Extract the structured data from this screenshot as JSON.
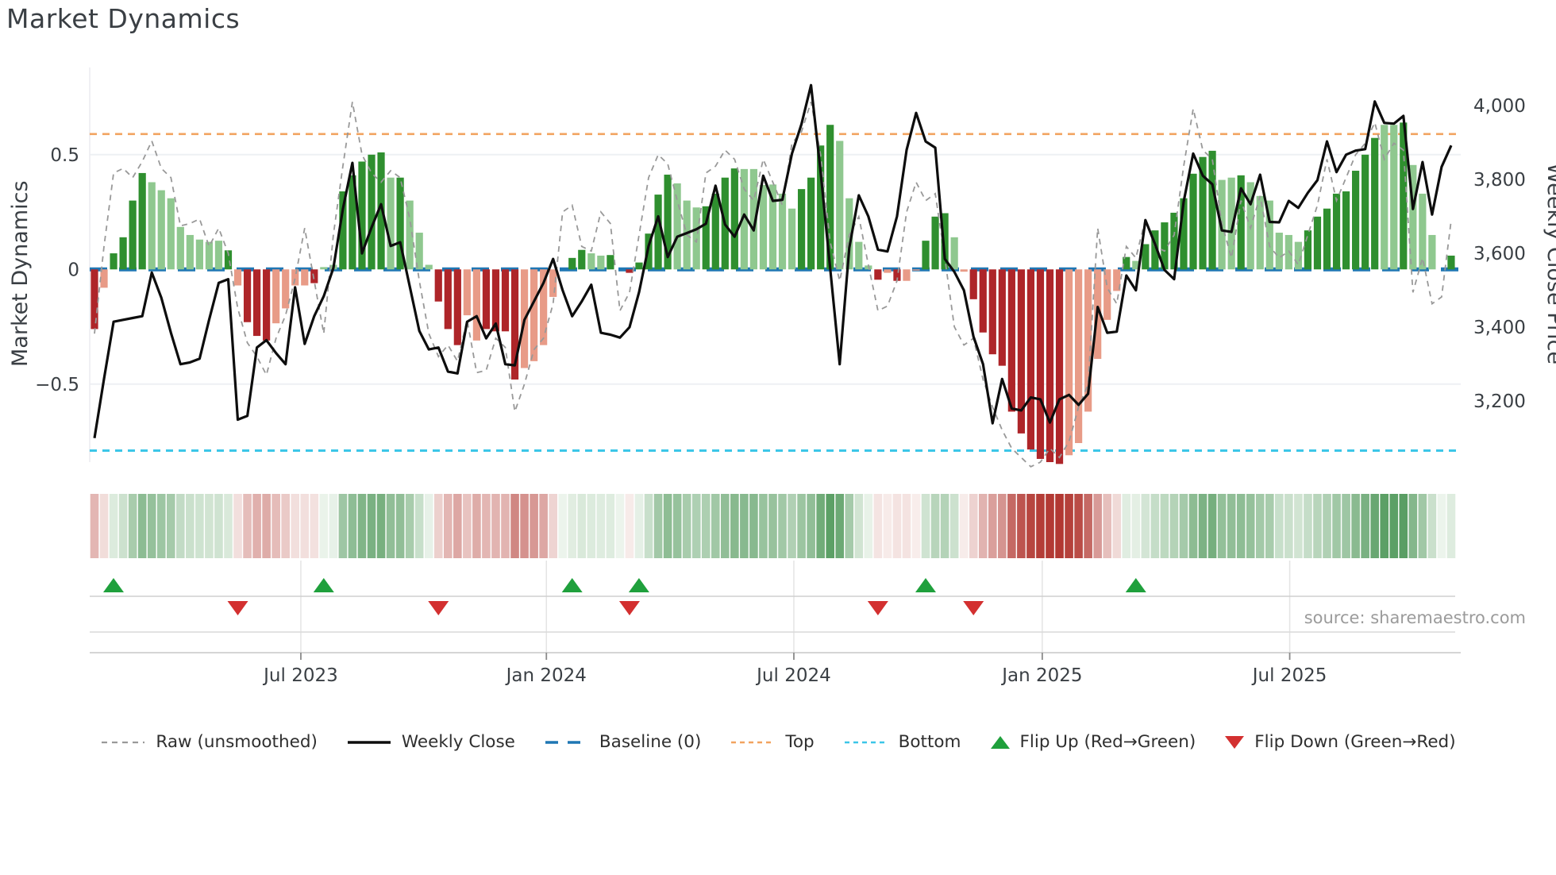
{
  "title": "Market Dynamics",
  "source_note": "source: sharemaestro.com",
  "axes": {
    "left": {
      "title": "Market Dynamics",
      "ticks": [
        {
          "value": 0.5,
          "label": "0.5"
        },
        {
          "value": 0.0,
          "label": "0"
        },
        {
          "value": -0.5,
          "label": "−0.5"
        }
      ]
    },
    "right": {
      "title": "Weekly Close Price",
      "ticks": [
        {
          "value": 4000,
          "label": "4,000"
        },
        {
          "value": 3800,
          "label": "3,800"
        },
        {
          "value": 3600,
          "label": "3,600"
        },
        {
          "value": 3400,
          "label": "3,400"
        },
        {
          "value": 3200,
          "label": "3,200"
        }
      ]
    },
    "x": {
      "ticks": [
        {
          "week": 21.6,
          "label": "Jul 2023"
        },
        {
          "week": 47.3,
          "label": "Jan 2024"
        },
        {
          "week": 73.2,
          "label": "Jul 2024"
        },
        {
          "week": 99.2,
          "label": "Jan 2025"
        },
        {
          "week": 125.1,
          "label": "Jul 2025"
        }
      ]
    }
  },
  "legend": {
    "items": [
      {
        "glyph": "dashed-gray-line",
        "label": "Raw (unsmoothed)"
      },
      {
        "glyph": "solid-black-line",
        "label": "Weekly Close"
      },
      {
        "glyph": "dashed-blue-line",
        "label": "Baseline (0)"
      },
      {
        "glyph": "dotted-orange-line",
        "label": "Top"
      },
      {
        "glyph": "dotted-cyan-line",
        "label": "Bottom"
      },
      {
        "glyph": "up-triangle-icon",
        "label": "Flip Up (Red→Green)"
      },
      {
        "glyph": "down-triangle-icon",
        "label": "Flip Down (Green→Red)"
      }
    ]
  },
  "colors": {
    "bar_dark_green": "#2f8f2f",
    "bar_light_green": "#8fc88f",
    "bar_dark_red": "#ae2529",
    "bar_light_red": "#e89b87",
    "close_line": "#0d0d0d",
    "raw_line": "#999999",
    "baseline": "#1f77b4",
    "top_line": "#f2a360",
    "bottom_line": "#3cc6e8",
    "flip_up": "#1fa03c",
    "flip_down": "#d33030",
    "grid": "#eef0f4",
    "axis_gray": "#cfcfcf",
    "heat_green_max": "#2a8237",
    "heat_red_max": "#b23832"
  },
  "chart_data": {
    "type": "bar",
    "subtype": "combo-oscillator-with-price-overlay",
    "x_unit": "week-index",
    "n_weeks": 143,
    "left_ylim": [
      -0.84,
      0.88
    ],
    "right_ylim": [
      3035,
      4103
    ],
    "grid": "horizontal-at-±0.5",
    "legend_position": "bottom-center",
    "reference_lines": {
      "baseline": {
        "label": "Baseline (0)",
        "value": 0.0,
        "axis": "left",
        "style": "long-dash blue"
      },
      "top": {
        "label": "Top",
        "value": 0.59,
        "axis": "left",
        "style": "dotted orange"
      },
      "bottom": {
        "label": "Bottom",
        "value": -0.79,
        "axis": "left",
        "style": "dotted cyan"
      }
    },
    "series": [
      {
        "name": "Market Dynamics (smoothed bars)",
        "type": "bar",
        "axis": "left",
        "values": [
          -0.26,
          -0.08,
          0.07,
          0.14,
          0.3,
          0.42,
          0.38,
          0.345,
          0.31,
          0.185,
          0.15,
          0.13,
          0.12,
          0.125,
          0.083,
          -0.07,
          -0.23,
          -0.29,
          -0.31,
          -0.235,
          -0.17,
          -0.07,
          -0.07,
          -0.06,
          0.01,
          0.02,
          0.34,
          0.41,
          0.47,
          0.5,
          0.51,
          0.4,
          0.4,
          0.3,
          0.16,
          0.02,
          -0.14,
          -0.26,
          -0.33,
          -0.2,
          -0.31,
          -0.26,
          -0.27,
          -0.27,
          -0.48,
          -0.43,
          -0.4,
          -0.33,
          -0.12,
          0,
          0.05,
          0.085,
          0.07,
          0.06,
          0.0625,
          0,
          -0.015,
          0.03,
          0.156,
          0.326,
          0.413,
          0.375,
          0.3,
          0.27,
          0.275,
          0.33,
          0.4,
          0.44,
          0.4375,
          0.4375,
          0.368,
          0.37,
          0.33,
          0.265,
          0.35,
          0.4,
          0.54,
          0.63,
          0.56,
          0.31,
          0.12,
          0.017,
          -0.045,
          -0.015,
          -0.05,
          -0.05,
          -0.005,
          0.125,
          0.23,
          0.245,
          0.14,
          -0.01,
          -0.13,
          -0.275,
          -0.37,
          -0.42,
          -0.62,
          -0.715,
          -0.785,
          -0.826,
          -0.84,
          -0.848,
          -0.81,
          -0.757,
          -0.62,
          -0.39,
          -0.22,
          -0.094,
          0.054,
          0.037,
          0.11,
          0.17,
          0.205,
          0.247,
          0.31,
          0.417,
          0.49,
          0.517,
          0.39,
          0.4,
          0.41,
          0.38,
          0.32,
          0.3,
          0.16,
          0.15,
          0.12,
          0.17,
          0.23,
          0.265,
          0.33,
          0.34,
          0.43,
          0.5,
          0.573,
          0.63,
          0.63,
          0.64,
          0.455,
          0.33,
          0.15,
          0,
          0.06
        ],
        "shades": "dlddddlllllllldldddlllldlldddddldllldddlldddd llllldd lldld dddd lll dddd llll ll dddd llll d l d ll ddd ll dddddddddd llllll d l dddddddd ll d llllll dddddddd ll d llll d"
      },
      {
        "name": "Raw (unsmoothed)",
        "type": "line",
        "axis": "left",
        "values": [
          -0.28,
          0.1,
          0.42,
          0.44,
          0.4,
          0.47,
          0.56,
          0.44,
          0.4,
          0.19,
          0.2,
          0.22,
          0.1,
          0.18,
          0.07,
          -0.17,
          -0.32,
          -0.38,
          -0.46,
          -0.3,
          -0.2,
          -0.04,
          0.18,
          -0.05,
          -0.28,
          0.15,
          0.45,
          0.73,
          0.5,
          0.42,
          0.38,
          0.43,
          0.4,
          0.22,
          -0.05,
          -0.28,
          -0.38,
          -0.33,
          -0.4,
          -0.22,
          -0.45,
          -0.44,
          -0.3,
          -0.34,
          -0.62,
          -0.5,
          -0.35,
          -0.3,
          -0.15,
          0.25,
          0.28,
          0.1,
          0.08,
          0.25,
          0.2,
          -0.18,
          -0.1,
          0.15,
          0.4,
          0.5,
          0.46,
          0.3,
          0.15,
          0.12,
          0.42,
          0.45,
          0.52,
          0.48,
          0.35,
          0.3,
          0.48,
          0.38,
          0.28,
          0.55,
          0.6,
          0.73,
          0.5,
          0.12,
          -0.05,
          0.15,
          0.23,
          0.02,
          -0.18,
          -0.16,
          -0.05,
          0.25,
          0.38,
          0.3,
          0.33,
          0.05,
          -0.25,
          -0.33,
          -0.3,
          -0.48,
          -0.6,
          -0.7,
          -0.78,
          -0.82,
          -0.86,
          -0.84,
          -0.78,
          -0.82,
          -0.75,
          -0.6,
          -0.5,
          0.18,
          -0.08,
          -0.15,
          0.1,
          0.05,
          0.22,
          0.1,
          0.08,
          0.15,
          0.45,
          0.7,
          0.52,
          0.48,
          0.2,
          0.05,
          0.3,
          0.18,
          0.32,
          0.1,
          0.05,
          0.08,
          0.02,
          0.15,
          0.28,
          0.48,
          0.3,
          0.4,
          0.5,
          0.55,
          0.64,
          0.48,
          0.55,
          0.52,
          -0.1,
          0.05,
          -0.15,
          -0.12,
          0.215
        ]
      },
      {
        "name": "Weekly Close",
        "type": "line",
        "axis": "right",
        "values": [
          3100,
          3260,
          3415,
          3420,
          3425,
          3430,
          3548,
          3480,
          3385,
          3300,
          3305,
          3315,
          3420,
          3520,
          3530,
          3150,
          3160,
          3345,
          3365,
          3330,
          3300,
          3508,
          3355,
          3430,
          3484,
          3560,
          3720,
          3845,
          3600,
          3670,
          3733,
          3620,
          3630,
          3510,
          3390,
          3340,
          3345,
          3280,
          3275,
          3415,
          3430,
          3370,
          3410,
          3300,
          3297,
          3420,
          3470,
          3520,
          3585,
          3500,
          3430,
          3470,
          3515,
          3385,
          3380,
          3372,
          3400,
          3495,
          3620,
          3700,
          3590,
          3645,
          3655,
          3665,
          3680,
          3783,
          3678,
          3645,
          3705,
          3662,
          3810,
          3742,
          3745,
          3870,
          3950,
          4055,
          3820,
          3560,
          3300,
          3615,
          3757,
          3700,
          3610,
          3605,
          3700,
          3880,
          3980,
          3903,
          3886,
          3585,
          3550,
          3500,
          3375,
          3300,
          3140,
          3260,
          3180,
          3175,
          3210,
          3205,
          3142,
          3205,
          3217,
          3190,
          3220,
          3455,
          3385,
          3388,
          3540,
          3500,
          3690,
          3625,
          3555,
          3530,
          3740,
          3870,
          3810,
          3787,
          3662,
          3658,
          3776,
          3733,
          3813,
          3685,
          3684,
          3742,
          3723,
          3764,
          3798,
          3903,
          3820,
          3867,
          3878,
          3882,
          4011,
          3953,
          3951,
          3972,
          3720,
          3847,
          3705,
          3834,
          3892
        ]
      },
      {
        "name": "Regime heatmap strip",
        "type": "heatmap",
        "axis": "none",
        "values_ref": "same as 'Market Dynamics (smoothed bars)' values"
      }
    ],
    "flip_markers": {
      "up_weeks": [
        2,
        24,
        50,
        57,
        87,
        109
      ],
      "down_weeks": [
        15,
        36,
        56,
        82,
        92
      ]
    }
  }
}
